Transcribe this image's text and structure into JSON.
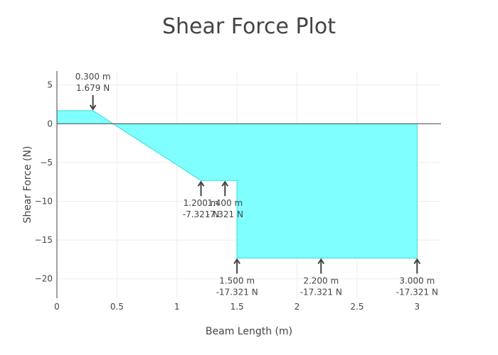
{
  "chart_data": {
    "type": "area",
    "title": "Shear Force Plot",
    "xlabel": "Beam Length (m)",
    "ylabel": "Shear Force (N)",
    "xlim": [
      0,
      3.2
    ],
    "ylim": [
      -22.5,
      6.8
    ],
    "x_ticks": [
      0,
      0.5,
      1,
      1.5,
      2,
      2.5,
      3
    ],
    "x_tick_labels": [
      "0",
      "0.5",
      "1",
      "1.5",
      "2",
      "2.5",
      "3"
    ],
    "y_ticks": [
      5,
      0,
      -5,
      -10,
      -15,
      -20
    ],
    "y_tick_labels": [
      "5",
      "0",
      "−5",
      "−10",
      "−15",
      "−20"
    ],
    "grid": true,
    "fill_color": "#7fffff",
    "line_color": "#33dddd",
    "series": [
      {
        "x": [
          0,
          0.3,
          1.2,
          1.4,
          1.5,
          1.5,
          2.2,
          3.0,
          3.0
        ],
        "y": [
          1.679,
          1.679,
          -7.321,
          -7.321,
          -7.321,
          -17.321,
          -17.321,
          -17.321,
          0
        ]
      }
    ],
    "annotations": [
      {
        "x": 0.3,
        "y": 1.679,
        "position": "above",
        "label_x": "0.300 m",
        "label_y": "1.679 N"
      },
      {
        "x": 1.2,
        "y": -7.321,
        "position": "below",
        "label_x": "1.200 m",
        "label_y": "-7.321 N"
      },
      {
        "x": 1.4,
        "y": -7.321,
        "position": "below",
        "label_x": "1.400 m",
        "label_y": "-7.321 N"
      },
      {
        "x": 1.5,
        "y": -17.321,
        "position": "below",
        "label_x": "1.500 m",
        "label_y": "-17.321 N"
      },
      {
        "x": 2.2,
        "y": -17.321,
        "position": "below",
        "label_x": "2.200 m",
        "label_y": "-17.321 N"
      },
      {
        "x": 3.0,
        "y": -17.321,
        "position": "below",
        "label_x": "3.000 m",
        "label_y": "-17.321 N"
      }
    ]
  }
}
